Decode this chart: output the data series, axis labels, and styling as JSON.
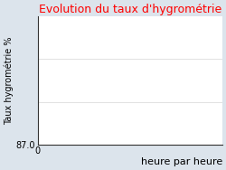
{
  "title": "Evolution du taux d'hygrométrie",
  "title_color": "#ff0000",
  "ylabel": "Taux hygrométrie %",
  "xlabel": "heure par heure",
  "background_color": "#dce4ec",
  "plot_bg_color": "#ffffff",
  "ytick_min": 87.0,
  "xtick_val": 0,
  "title_fontsize": 9,
  "xlabel_fontsize": 8,
  "tick_fontsize": 7,
  "ylabel_fontsize": 7,
  "grid_color": "#dddddd",
  "spine_color": "#333333",
  "ylim_max": 117.0,
  "xlim_max": 24
}
